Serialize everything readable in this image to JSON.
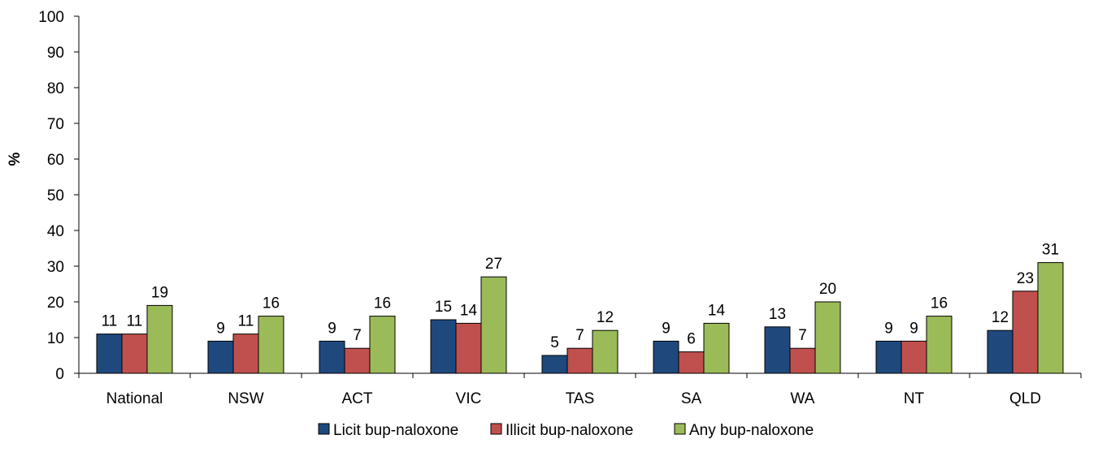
{
  "chart_data": {
    "type": "bar",
    "title": "",
    "xlabel": "",
    "ylabel": "%",
    "ylim": [
      0,
      100
    ],
    "yticks": [
      0,
      10,
      20,
      30,
      40,
      50,
      60,
      70,
      80,
      90,
      100
    ],
    "grid": false,
    "legend_position": "bottom",
    "categories": [
      "National",
      "NSW",
      "ACT",
      "VIC",
      "TAS",
      "SA",
      "WA",
      "NT",
      "QLD"
    ],
    "series": [
      {
        "name": "Licit bup-naloxone",
        "color": "#1f497d",
        "values": [
          11,
          9,
          9,
          15,
          5,
          9,
          13,
          9,
          12
        ]
      },
      {
        "name": "Illicit bup-naloxone",
        "color": "#c0504d",
        "values": [
          11,
          11,
          7,
          14,
          7,
          6,
          7,
          9,
          23
        ]
      },
      {
        "name": "Any bup-naloxone",
        "color": "#9bbb59",
        "values": [
          19,
          16,
          16,
          27,
          12,
          14,
          20,
          16,
          31
        ]
      }
    ]
  }
}
